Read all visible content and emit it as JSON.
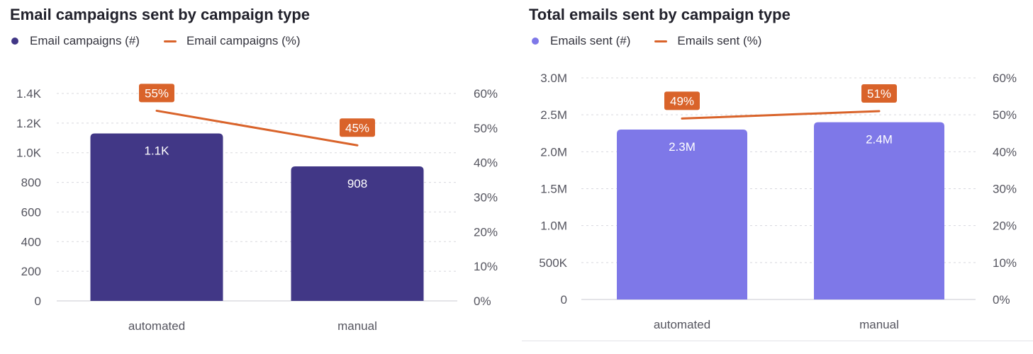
{
  "colors": {
    "bar_left": "#413786",
    "bar_right": "#7e78e8",
    "line": "#d9632a",
    "grid": "#d8d8de",
    "axis": "#c9c9d0"
  },
  "chart_data": [
    {
      "type": "bar",
      "title": "Email campaigns sent by campaign type",
      "categories": [
        "automated",
        "manual"
      ],
      "series": [
        {
          "name": "Email campaigns (#)",
          "type": "bar",
          "axis": "left",
          "values": [
            1130,
            908
          ],
          "labels": [
            "1.1K",
            "908"
          ]
        },
        {
          "name": "Email campaigns (%)",
          "type": "line",
          "axis": "right",
          "values": [
            55,
            45
          ],
          "labels": [
            "55%",
            "45%"
          ]
        }
      ],
      "y_left": {
        "ticks": [
          0,
          200,
          400,
          600,
          800,
          1000,
          1200,
          1400
        ],
        "tick_labels": [
          "0",
          "200",
          "400",
          "600",
          "800",
          "1.0K",
          "1.2K",
          "1.4K"
        ],
        "max": 1400
      },
      "y_right": {
        "ticks": [
          0,
          10,
          20,
          30,
          40,
          50,
          60
        ],
        "tick_labels": [
          "0%",
          "10%",
          "20%",
          "30%",
          "40%",
          "50%",
          "60%"
        ],
        "max": 60
      },
      "grid": true,
      "legend_position": "top-left"
    },
    {
      "type": "bar",
      "title": "Total emails sent by campaign type",
      "categories": [
        "automated",
        "manual"
      ],
      "series": [
        {
          "name": "Emails sent (#)",
          "type": "bar",
          "axis": "left",
          "values": [
            2300000,
            2400000
          ],
          "labels": [
            "2.3M",
            "2.4M"
          ]
        },
        {
          "name": "Emails sent (%)",
          "type": "line",
          "axis": "right",
          "values": [
            49,
            51
          ],
          "labels": [
            "49%",
            "51%"
          ]
        }
      ],
      "y_left": {
        "ticks": [
          0,
          500000,
          1000000,
          1500000,
          2000000,
          2500000,
          3000000
        ],
        "tick_labels": [
          "0",
          "500K",
          "1.0M",
          "1.5M",
          "2.0M",
          "2.5M",
          "3.0M"
        ],
        "max": 3000000
      },
      "y_right": {
        "ticks": [
          0,
          10,
          20,
          30,
          40,
          50,
          60
        ],
        "tick_labels": [
          "0%",
          "10%",
          "20%",
          "30%",
          "40%",
          "50%",
          "60%"
        ],
        "max": 60
      },
      "grid": true,
      "legend_position": "top-left"
    }
  ]
}
